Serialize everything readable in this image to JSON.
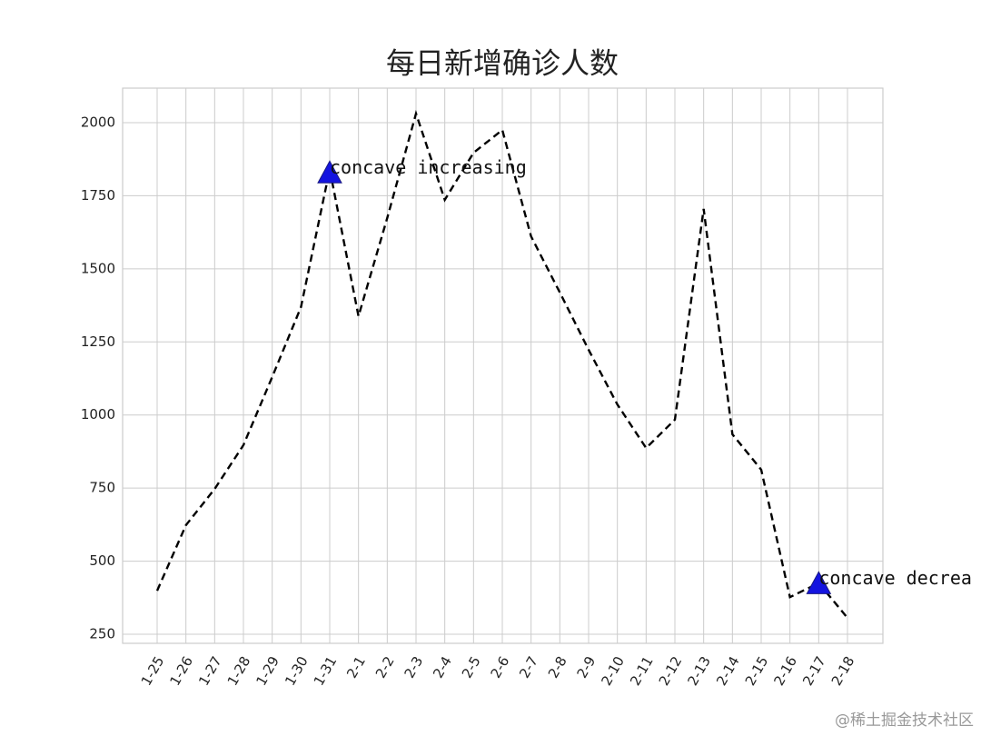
{
  "chart_data": {
    "type": "line",
    "title": "每日新增确诊人数",
    "categories": [
      "1-25",
      "1-26",
      "1-27",
      "1-28",
      "1-29",
      "1-30",
      "1-31",
      "2-1",
      "2-2",
      "2-3",
      "2-4",
      "2-5",
      "2-6",
      "2-7",
      "2-8",
      "2-9",
      "2-10",
      "2-11",
      "2-12",
      "2-13",
      "2-14",
      "2-15",
      "2-16",
      "2-17",
      "2-18"
    ],
    "series": [
      {
        "name": "每日新增确诊人数",
        "color": "#000000",
        "dash": true,
        "values": [
          399,
          623,
          747,
          897,
          1130,
          1369,
          1840,
          1338,
          1674,
          2031,
          1736,
          1897,
          1975,
          1611,
          1419,
          1223,
          1036,
          887,
          984,
          1705,
          934,
          813,
          377,
          425,
          306
        ]
      }
    ],
    "ylim": [
      219,
      2118
    ],
    "yticks": [
      250,
      500,
      750,
      1000,
      1250,
      1500,
      1750,
      2000
    ],
    "grid": true,
    "annotations": [
      {
        "text": "concave increasing",
        "x": "1-31",
        "y": 1825,
        "color": "#1414e0"
      },
      {
        "text": "concave decrea",
        "x": "2-17",
        "y": 420,
        "color": "#1414e0"
      }
    ],
    "watermark": "@稀土掘金技术社区"
  }
}
